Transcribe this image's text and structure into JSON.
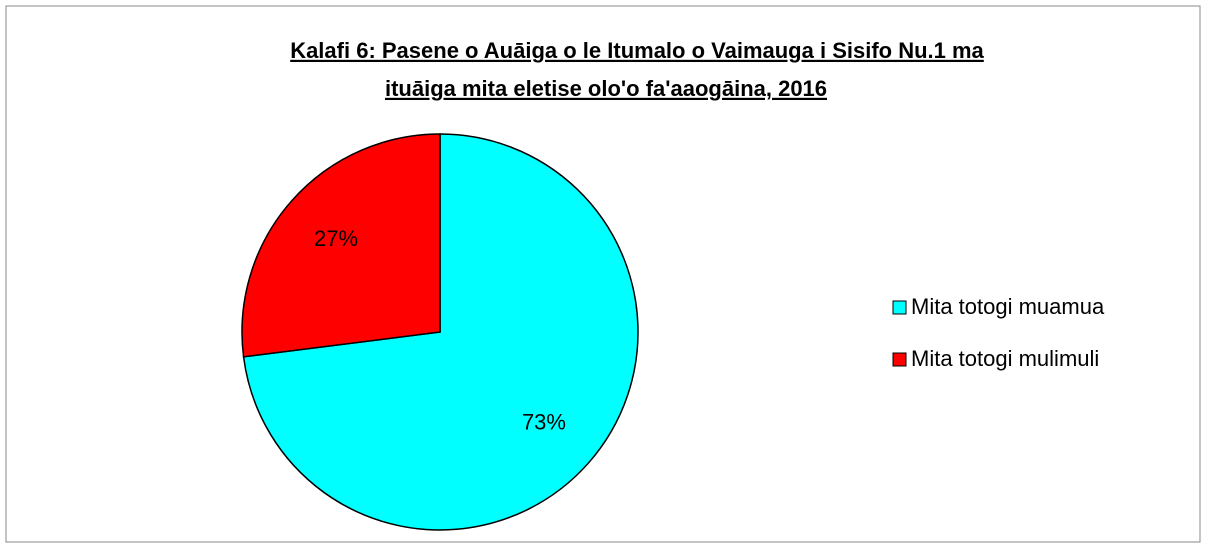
{
  "chart_data": {
    "type": "pie",
    "title": [
      "Kalafi 6: Pasene o Auāiga o le Itumalo o Vaimauga i Sisifo Nu.1 ma",
      "ituāiga mita eletise olo'o fa'aaogāina, 2016"
    ],
    "categories": [
      "Mita totogi muamua",
      "Mita totogi mulimuli"
    ],
    "values": [
      73,
      27
    ],
    "value_labels": [
      "73%",
      "27%"
    ],
    "colors": [
      "#00ffff",
      "#ff0000"
    ],
    "legend": "right"
  }
}
